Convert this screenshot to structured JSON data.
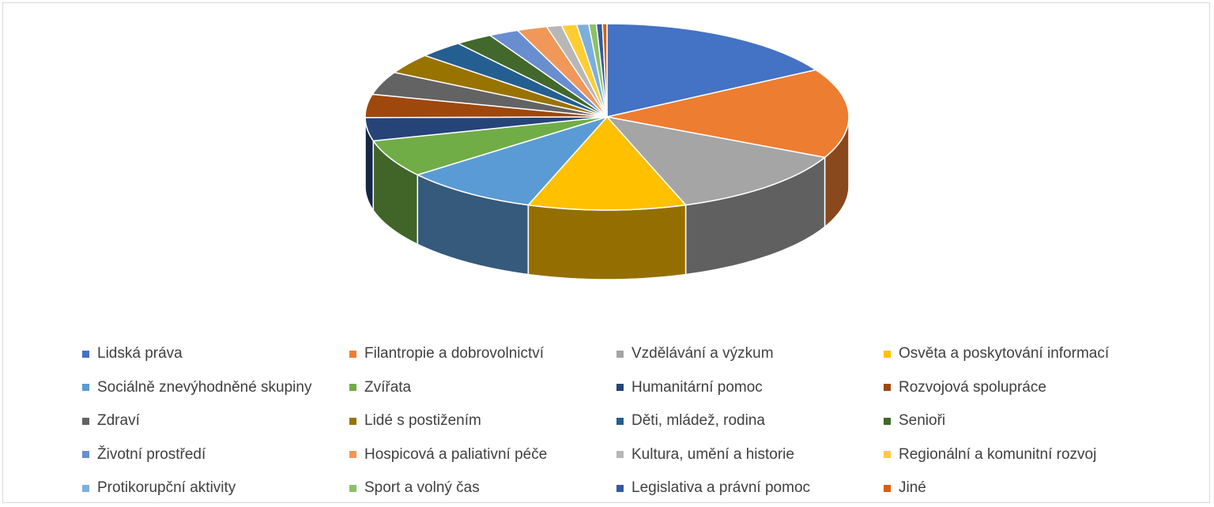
{
  "chart_data": {
    "type": "pie",
    "style": "3d-exploded-perspective",
    "title": "",
    "legend_position": "bottom",
    "categories": [
      "Lidská práva",
      "Filantropie a dobrovolnictví",
      "Vzdělávání a výzkum",
      "Osvěta a poskytování informací",
      "Sociálně znevýhodněné skupiny",
      "Zvířata",
      "Humanitární pomoc",
      "Rozvojová spolupráce",
      "Zdraví",
      "Lidé s postižením",
      "Děti, mládež, rodina",
      "Senioři",
      "Životní prostředí",
      "Hospicová a paliativní péče",
      "Kultura, umění a historie",
      "Regionální a komunitní rozvoj",
      "Protikorupční aktivity",
      "Sport a volný čas",
      "Legislativa a právní pomoc",
      "Jiné"
    ],
    "values": [
      16.5,
      15.5,
      12.5,
      10.5,
      9.0,
      6.5,
      4.0,
      4.0,
      4.0,
      3.5,
      3.0,
      2.5,
      2.0,
      2.0,
      1.0,
      1.0,
      0.8,
      0.5,
      0.4,
      0.3
    ],
    "colors": [
      "#4472C4",
      "#ED7D31",
      "#A5A5A5",
      "#FFC000",
      "#5B9BD5",
      "#70AD47",
      "#264478",
      "#9E480E",
      "#636363",
      "#997300",
      "#255E91",
      "#43682B",
      "#698ED0",
      "#F1975A",
      "#B7B7B7",
      "#FFCD33",
      "#7CAFDD",
      "#8CC168",
      "#335AA1",
      "#D26012"
    ]
  }
}
